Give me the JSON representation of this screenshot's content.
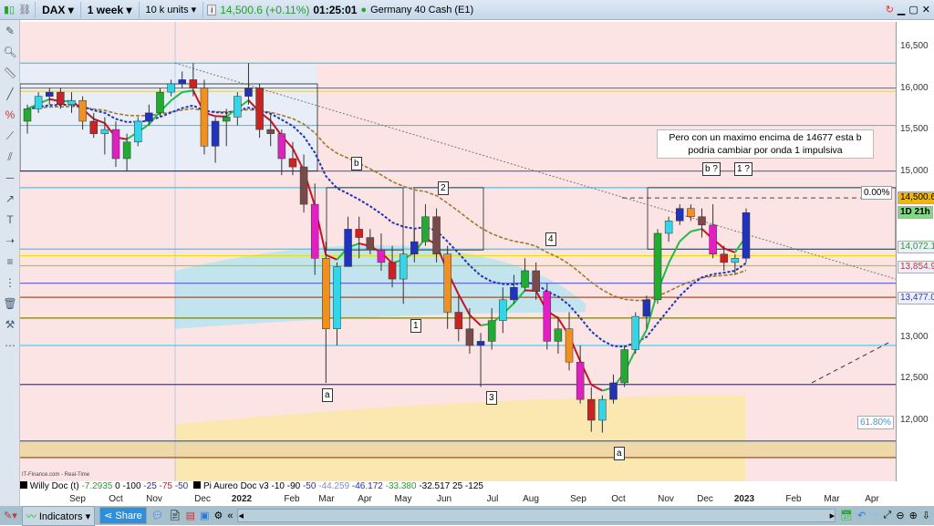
{
  "header": {
    "symbol": "DAX",
    "timeframe": "1 week",
    "units": "10 k units",
    "price": "14,500.6 (+0.11%)",
    "time": "01:25:01",
    "instrument": "Germany 40 Cash (E1)"
  },
  "price_axis": {
    "ticks": [
      "16,500",
      "16,000",
      "15,500",
      "15,000",
      "13,000",
      "12,500",
      "12,000"
    ],
    "tags": [
      {
        "text": "14,500.6",
        "color": "#f2b705"
      },
      {
        "text": "1D 21h",
        "color": "#7bdc7b"
      },
      {
        "text": "14,072.1",
        "color": "#2a9d2a"
      },
      {
        "text": "13,854.9",
        "color": "#c0392b"
      },
      {
        "text": "13,477.0",
        "color": "#2c3ea8"
      }
    ]
  },
  "time_axis": [
    "Sep",
    "Oct",
    "Nov",
    "Dec",
    "2022",
    "Feb",
    "Mar",
    "Apr",
    "May",
    "Jun",
    "Jul",
    "Aug",
    "Sep",
    "Oct",
    "Nov",
    "Dec",
    "2023",
    "Feb",
    "Mar",
    "Apr"
  ],
  "source": "IT-Finance.com - Real-Time",
  "indicators": {
    "willy": {
      "name": "Willy Doc (t)",
      "values": [
        {
          "v": "-7.2935",
          "c": "#2a9d2a"
        },
        {
          "v": "0",
          "c": "#000"
        },
        {
          "v": "-100",
          "c": "#000"
        },
        {
          "v": "-25",
          "c": "#2233aa"
        },
        {
          "v": "-75",
          "c": "#cc2222"
        },
        {
          "v": "-50",
          "c": "#2233aa"
        }
      ]
    },
    "pi": {
      "name": "Pi Aureo Doc v3",
      "values": [
        {
          "v": "-10",
          "c": "#000"
        },
        {
          "v": "-90",
          "c": "#000"
        },
        {
          "v": "-50",
          "c": "#2233aa"
        },
        {
          "v": "-44.259",
          "c": "#8888cc"
        },
        {
          "v": "-46.172",
          "c": "#2233aa"
        },
        {
          "v": "-33.380",
          "c": "#2a9d2a"
        },
        {
          "v": "-32.517",
          "c": "#000"
        },
        {
          "v": "25",
          "c": "#000"
        },
        {
          "v": "-125",
          "c": "#000"
        }
      ]
    }
  },
  "annotations": {
    "b": "b",
    "w2": "2",
    "w4": "4",
    "w1": "1",
    "a1": "a",
    "w3": "3",
    "a2": "a",
    "bq": "b ?",
    "oneq": "1 ?",
    "fib0": "0.00%",
    "fib618": "61.80%",
    "note": "Pero con  un maximo encima de 14677 esta b podria cambiar por onda 1 impulsiva"
  },
  "toolbar": {
    "indicators": "Indicators",
    "share": "Share"
  },
  "chart_data": {
    "type": "candlestick",
    "timeframe": "weekly",
    "ohlc": [
      [
        15600,
        15800,
        15450,
        15750
      ],
      [
        15750,
        15950,
        15700,
        15900
      ],
      [
        15900,
        16000,
        15800,
        15950
      ],
      [
        15950,
        16000,
        15750,
        15800
      ],
      [
        15800,
        15950,
        15700,
        15850
      ],
      [
        15850,
        15900,
        15500,
        15600
      ],
      [
        15600,
        15700,
        15400,
        15450
      ],
      [
        15450,
        15650,
        15200,
        15500
      ],
      [
        15500,
        15600,
        15050,
        15150
      ],
      [
        15150,
        15450,
        15000,
        15350
      ],
      [
        15350,
        15650,
        15300,
        15600
      ],
      [
        15600,
        15800,
        15550,
        15700
      ],
      [
        15700,
        16000,
        15650,
        15950
      ],
      [
        15950,
        16100,
        15900,
        16050
      ],
      [
        16050,
        16200,
        16000,
        16100
      ],
      [
        16100,
        16300,
        15900,
        16000
      ],
      [
        16000,
        16100,
        15200,
        15300
      ],
      [
        15300,
        15650,
        15100,
        15600
      ],
      [
        15600,
        15750,
        15300,
        15650
      ],
      [
        15650,
        15950,
        15550,
        15900
      ],
      [
        15900,
        16300,
        15800,
        16000
      ],
      [
        16000,
        16050,
        15400,
        15500
      ],
      [
        15500,
        15700,
        15300,
        15450
      ],
      [
        15450,
        15500,
        14950,
        15150
      ],
      [
        15150,
        15350,
        14950,
        15050
      ],
      [
        15050,
        15200,
        14500,
        14600
      ],
      [
        14600,
        14850,
        13750,
        13950
      ],
      [
        13950,
        14150,
        12450,
        13100
      ],
      [
        13100,
        13900,
        12900,
        13850
      ],
      [
        13850,
        14450,
        13850,
        14300
      ],
      [
        14300,
        14450,
        13950,
        14200
      ],
      [
        14200,
        14300,
        14000,
        14050
      ],
      [
        14050,
        14250,
        13800,
        13900
      ],
      [
        13900,
        14100,
        13600,
        13700
      ],
      [
        13700,
        14050,
        13400,
        14000
      ],
      [
        14000,
        14300,
        13900,
        14150
      ],
      [
        14150,
        14600,
        14100,
        14450
      ],
      [
        14450,
        14550,
        13900,
        14000
      ],
      [
        14000,
        14100,
        13100,
        13300
      ],
      [
        13300,
        13500,
        12950,
        13100
      ],
      [
        13100,
        13350,
        12800,
        12900
      ],
      [
        12900,
        13050,
        12400,
        12950
      ],
      [
        12950,
        13350,
        12850,
        13200
      ],
      [
        13200,
        13600,
        13050,
        13450
      ],
      [
        13450,
        13750,
        13400,
        13600
      ],
      [
        13600,
        13950,
        13550,
        13800
      ],
      [
        13800,
        13900,
        13450,
        13550
      ],
      [
        13550,
        13650,
        12850,
        12950
      ],
      [
        12950,
        13250,
        12800,
        13100
      ],
      [
        13100,
        13300,
        12600,
        12700
      ],
      [
        12700,
        12900,
        12200,
        12250
      ],
      [
        12250,
        12400,
        11860,
        12000
      ],
      [
        12000,
        12300,
        11850,
        12250
      ],
      [
        12250,
        12550,
        12200,
        12450
      ],
      [
        12450,
        12900,
        12400,
        12850
      ],
      [
        12850,
        13300,
        12800,
        13250
      ],
      [
        13250,
        13500,
        13100,
        13450
      ],
      [
        13450,
        14300,
        13400,
        14250
      ],
      [
        14250,
        14450,
        14150,
        14400
      ],
      [
        14400,
        14600,
        14350,
        14550
      ],
      [
        14550,
        14600,
        14400,
        14450
      ],
      [
        14450,
        14550,
        14200,
        14350
      ],
      [
        14350,
        14600,
        13950,
        14000
      ],
      [
        14000,
        14100,
        13800,
        13900
      ],
      [
        13900,
        14000,
        13750,
        13950
      ],
      [
        13950,
        14550,
        13900,
        14500
      ]
    ],
    "levels": [
      {
        "p": 16300,
        "c": "#3cc8f0"
      },
      {
        "p": 16000,
        "c": "#777"
      },
      {
        "p": 15960,
        "c": "#e8d060"
      },
      {
        "p": 15550,
        "c": "#3cc8f0"
      },
      {
        "p": 15000,
        "c": "#6a6ad0"
      },
      {
        "p": 14800,
        "c": "#3cc8f0"
      },
      {
        "p": 14060,
        "c": "#3cc8f0"
      },
      {
        "p": 13980,
        "c": "#e8e000"
      },
      {
        "p": 13860,
        "c": "#a8d020"
      },
      {
        "p": 13650,
        "c": "#6a6ad0"
      },
      {
        "p": 13480,
        "c": "#a0522d"
      },
      {
        "p": 13230,
        "c": "#808000"
      },
      {
        "p": 12900,
        "c": "#3cc8f0"
      },
      {
        "p": 12430,
        "c": "#3c3cb0"
      },
      {
        "p": 11750,
        "c": "#2c6cc0"
      },
      {
        "p": 11550,
        "c": "#8b4513"
      }
    ],
    "ylim": [
      11400,
      16800
    ]
  }
}
